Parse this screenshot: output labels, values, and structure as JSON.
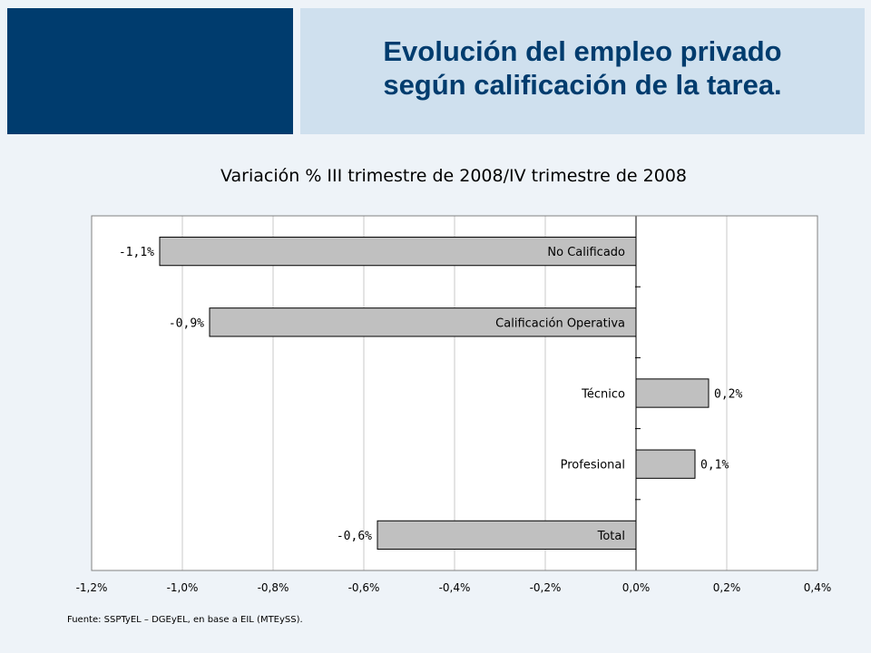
{
  "header": {
    "title_line1": "Evolución del empleo privado",
    "title_line2": "según calificación de la tarea."
  },
  "chart_data": {
    "type": "bar",
    "orientation": "horizontal",
    "title": "Variación % III trimestre de 2008/IV trimestre de 2008",
    "categories": [
      "No Calificado",
      "Calificación Operativa",
      "Técnico",
      "Profesional",
      "Total"
    ],
    "values": [
      -1.05,
      -0.94,
      0.16,
      0.13,
      -0.57
    ],
    "data_labels": [
      "-1,1%",
      "-0,9%",
      "0,2%",
      "0,1%",
      "-0,6%"
    ],
    "xlim": [
      -1.2,
      0.4
    ],
    "x_ticks": [
      -1.2,
      -1.0,
      -0.8,
      -0.6,
      -0.4,
      -0.2,
      0.0,
      0.2,
      0.4
    ],
    "x_tick_labels": [
      "-1,2%",
      "-1,0%",
      "-0,8%",
      "-0,6%",
      "-0,4%",
      "-0,2%",
      "0,0%",
      "0,2%",
      "0,4%"
    ],
    "grid": "vertical",
    "bar_color": "#c0c0c0",
    "plot_background": "#ffffff"
  },
  "footer": {
    "source": "Fuente: SSPTyEL – DGEyEL, en base a EIL (MTEySS)."
  }
}
